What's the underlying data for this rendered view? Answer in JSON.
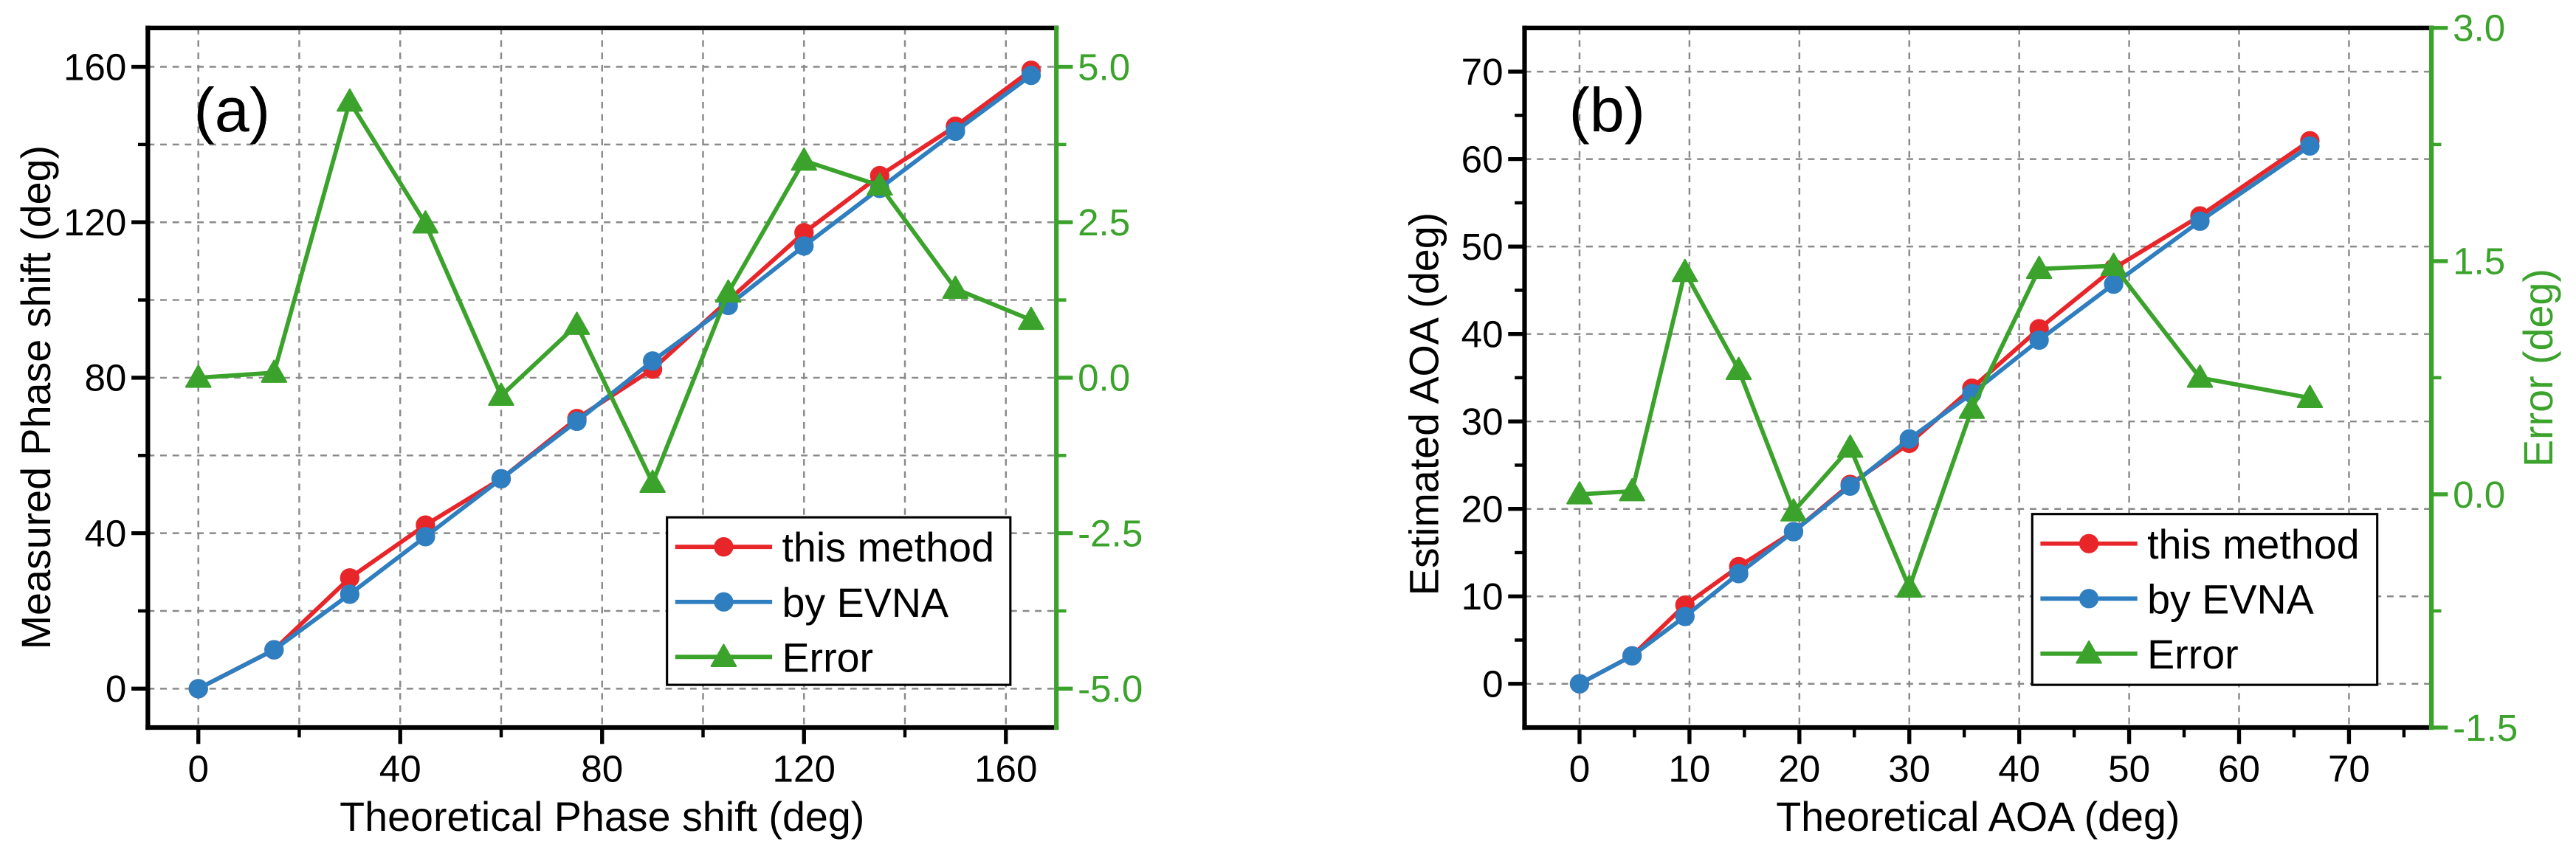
{
  "chart_data": [
    {
      "type": "line",
      "panel_label": "(a)",
      "xlabel": "Theoretical Phase shift (deg)",
      "ylabel": "Measured Phase shift (deg)",
      "xlim": [
        -10,
        170
      ],
      "ylim": [
        -10,
        170
      ],
      "y2lim": [
        -5.625,
        5.625
      ],
      "xticks": [
        0,
        40,
        80,
        120,
        160
      ],
      "xtick_labels": [
        "0",
        "40",
        "80",
        "120",
        "160"
      ],
      "xminor": [
        20,
        60,
        100,
        140
      ],
      "yticks": [
        0,
        40,
        80,
        120,
        160
      ],
      "ytick_labels": [
        "0",
        "40",
        "80",
        "120",
        "160"
      ],
      "yminor": [
        20,
        60,
        100,
        140
      ],
      "y2ticks": [
        -5,
        -2.5,
        0,
        2.5,
        5
      ],
      "y2tick_labels": [
        "-5.0",
        "-2.5",
        "0.0",
        "2.5",
        "5.0"
      ],
      "y2minor": [
        -3.75,
        -1.25,
        1.25,
        3.75
      ],
      "grid": true,
      "xgrid": [
        0,
        20,
        40,
        60,
        80,
        100,
        120,
        140,
        160
      ],
      "ygrid": [
        0,
        20,
        40,
        60,
        80,
        100,
        120,
        140,
        160
      ],
      "legend": "bottom-right",
      "axis_color": "#000000",
      "y2_axis_color": "#3BA32B",
      "x": [
        0,
        15,
        30,
        45,
        60,
        75,
        90,
        105,
        120,
        135,
        150,
        165
      ],
      "series": [
        {
          "name": "this method",
          "color": "#E8262A",
          "marker_icon": "circle-icon",
          "right_axis": false,
          "y": [
            0,
            10,
            28.5,
            42.1,
            54,
            69.5,
            82.2,
            99.9,
            117.3,
            132,
            144.7,
            159.1
          ]
        },
        {
          "name": "by EVNA",
          "color": "#2E7EC0",
          "marker_icon": "circle-icon",
          "right_axis": false,
          "y": [
            0,
            10,
            24.3,
            39.1,
            54,
            68.8,
            84.3,
            98.6,
            113.9,
            128.7,
            143.4,
            157.8
          ]
        },
        {
          "name": "Error",
          "color": "#3BA32B",
          "marker_icon": "triangle-icon",
          "right_axis": true,
          "y": [
            0,
            0.08,
            4.44,
            2.48,
            -0.29,
            0.85,
            -1.69,
            1.37,
            3.49,
            3.09,
            1.43,
            0.93
          ]
        }
      ]
    },
    {
      "type": "line",
      "panel_label": "(b)",
      "xlabel": "Theoretical AOA (deg)",
      "ylabel": "Estimated AOA (deg)",
      "y2label": "Error (deg)",
      "xlim": [
        -5,
        77.5
      ],
      "ylim": [
        -5,
        75
      ],
      "y2lim": [
        -1.5,
        3.0
      ],
      "xticks": [
        0,
        10,
        20,
        30,
        40,
        50,
        60,
        70
      ],
      "xtick_labels": [
        "0",
        "10",
        "20",
        "30",
        "40",
        "50",
        "60",
        "70"
      ],
      "xminor": [
        5,
        15,
        25,
        35,
        45,
        55,
        65,
        75
      ],
      "yticks": [
        0,
        10,
        20,
        30,
        40,
        50,
        60,
        70
      ],
      "ytick_labels": [
        "0",
        "10",
        "20",
        "30",
        "40",
        "50",
        "60",
        "70"
      ],
      "yminor": [
        5,
        15,
        25,
        35,
        45,
        55,
        65
      ],
      "y2ticks": [
        -1.5,
        0,
        1.5,
        3.0
      ],
      "y2tick_labels": [
        "-1.5",
        "0.0",
        "1.5",
        "3.0"
      ],
      "y2minor": [
        -0.75,
        0.75,
        2.25
      ],
      "grid": true,
      "xgrid": [
        0,
        10,
        20,
        30,
        40,
        50,
        60,
        70
      ],
      "ygrid": [
        0,
        10,
        20,
        30,
        40,
        50,
        60,
        70
      ],
      "legend": "bottom-right",
      "axis_color": "#000000",
      "y2_axis_color": "#3BA32B",
      "x": [
        0,
        4.78,
        9.59,
        14.48,
        19.47,
        24.62,
        30.0,
        35.69,
        41.81,
        48.59,
        56.44,
        66.44
      ],
      "series": [
        {
          "name": "this method",
          "color": "#E8262A",
          "marker_icon": "circle-icon",
          "right_axis": false,
          "y": [
            0,
            3.2,
            9.0,
            13.4,
            17.4,
            22.8,
            27.5,
            33.8,
            40.6,
            47.5,
            53.5,
            62.1
          ]
        },
        {
          "name": "by EVNA",
          "color": "#2E7EC0",
          "marker_icon": "circle-icon",
          "right_axis": false,
          "y": [
            0,
            3.2,
            7.7,
            12.6,
            17.4,
            22.6,
            28.0,
            33.2,
            39.3,
            45.7,
            52.9,
            61.5
          ]
        },
        {
          "name": "Error",
          "color": "#3BA32B",
          "marker_icon": "triangle-icon",
          "right_axis": true,
          "y": [
            0,
            0.02,
            1.43,
            0.8,
            -0.11,
            0.3,
            -0.6,
            0.55,
            1.45,
            1.47,
            0.75,
            0.62
          ]
        }
      ]
    }
  ]
}
